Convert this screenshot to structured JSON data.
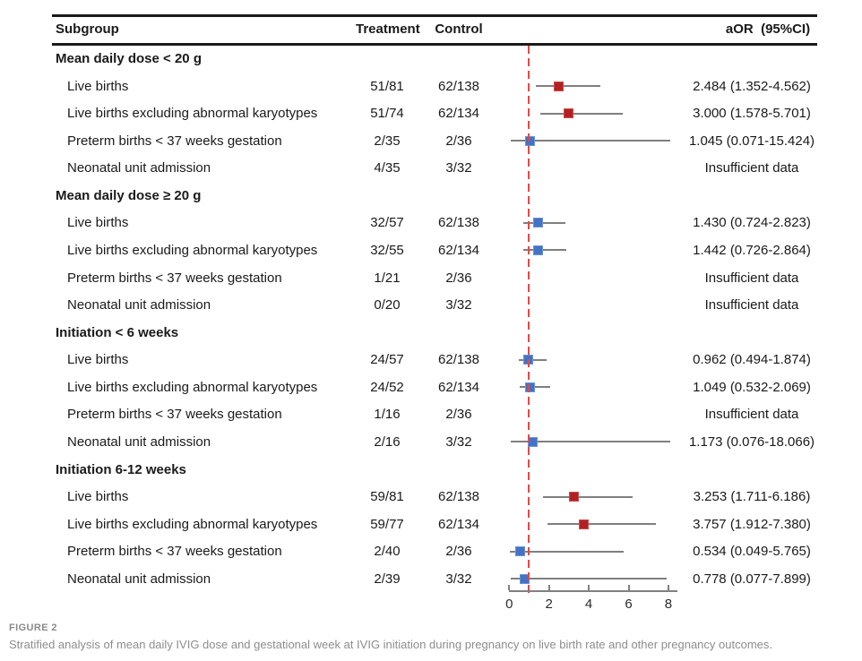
{
  "header": {
    "subgroup": "Subgroup",
    "treatment": "Treatment",
    "control": "Control",
    "aor": "aOR  (95%CI)"
  },
  "caption": {
    "label": "FIGURE 2",
    "text": "Stratified analysis of mean daily IVIG dose and gestational week at IVIG initiation during pregnancy on live birth rate and other pregnancy outcomes."
  },
  "colors": {
    "significant_marker": "#b22026",
    "nonsignificant_marker": "#4472c4",
    "ci_line": "#7f7f7f",
    "reference_line": "#e04a45",
    "table_rule": "#1a1a1a",
    "caption_text": "#8d8d8d"
  },
  "chart_data": {
    "type": "forest",
    "axis": {
      "min": 0,
      "max": 8,
      "ticks": [
        0,
        2,
        4,
        6,
        8
      ],
      "reference_value": 1,
      "clip_max": 8.1
    },
    "groups": [
      {
        "label": "Mean daily dose < 20 g",
        "rows": [
          {
            "label": "Live births",
            "treatment": "51/81",
            "control": "62/138",
            "aor": "2.484 (1.352-4.562)",
            "est": 2.484,
            "lo": 1.352,
            "hi": 4.562,
            "significant": true
          },
          {
            "label": "Live births excluding abnormal karyotypes",
            "treatment": "51/74",
            "control": "62/134",
            "aor": "3.000 (1.578-5.701)",
            "est": 3.0,
            "lo": 1.578,
            "hi": 5.701,
            "significant": true
          },
          {
            "label": "Preterm births < 37 weeks gestation",
            "treatment": "2/35",
            "control": "2/36",
            "aor": "1.045 (0.071-15.424)",
            "est": 1.045,
            "lo": 0.071,
            "hi": 15.424,
            "significant": false
          },
          {
            "label": "Neonatal unit admission",
            "treatment": "4/35",
            "control": "3/32",
            "aor": "Insufficient data",
            "est": null,
            "lo": null,
            "hi": null,
            "significant": false
          }
        ]
      },
      {
        "label": "Mean daily dose ≥ 20 g",
        "rows": [
          {
            "label": "Live births",
            "treatment": "32/57",
            "control": "62/138",
            "aor": "1.430 (0.724-2.823)",
            "est": 1.43,
            "lo": 0.724,
            "hi": 2.823,
            "significant": false
          },
          {
            "label": "Live births excluding abnormal karyotypes",
            "treatment": "32/55",
            "control": "62/134",
            "aor": "1.442 (0.726-2.864)",
            "est": 1.442,
            "lo": 0.726,
            "hi": 2.864,
            "significant": false
          },
          {
            "label": "Preterm births < 37 weeks gestation",
            "treatment": "1/21",
            "control": "2/36",
            "aor": "Insufficient data",
            "est": null,
            "lo": null,
            "hi": null,
            "significant": false
          },
          {
            "label": "Neonatal unit admission",
            "treatment": "0/20",
            "control": "3/32",
            "aor": "Insufficient data",
            "est": null,
            "lo": null,
            "hi": null,
            "significant": false
          }
        ]
      },
      {
        "label": "Initiation < 6 weeks",
        "rows": [
          {
            "label": "Live births",
            "treatment": "24/57",
            "control": "62/138",
            "aor": "0.962 (0.494-1.874)",
            "est": 0.962,
            "lo": 0.494,
            "hi": 1.874,
            "significant": false
          },
          {
            "label": "Live births excluding abnormal karyotypes",
            "treatment": "24/52",
            "control": "62/134",
            "aor": "1.049 (0.532-2.069)",
            "est": 1.049,
            "lo": 0.532,
            "hi": 2.069,
            "significant": false
          },
          {
            "label": "Preterm births < 37 weeks gestation",
            "treatment": "1/16",
            "control": "2/36",
            "aor": "Insufficient data",
            "est": null,
            "lo": null,
            "hi": null,
            "significant": false
          },
          {
            "label": "Neonatal unit admission",
            "treatment": "2/16",
            "control": "3/32",
            "aor": "1.173 (0.076-18.066)",
            "est": 1.173,
            "lo": 0.076,
            "hi": 18.066,
            "significant": false
          }
        ]
      },
      {
        "label": "Initiation 6-12 weeks",
        "rows": [
          {
            "label": "Live births",
            "treatment": "59/81",
            "control": "62/138",
            "aor": "3.253 (1.711-6.186)",
            "est": 3.253,
            "lo": 1.711,
            "hi": 6.186,
            "significant": true
          },
          {
            "label": "Live births excluding abnormal karyotypes",
            "treatment": "59/77",
            "control": "62/134",
            "aor": "3.757 (1.912-7.380)",
            "est": 3.757,
            "lo": 1.912,
            "hi": 7.38,
            "significant": true
          },
          {
            "label": "Preterm births < 37 weeks gestation",
            "treatment": "2/40",
            "control": "2/36",
            "aor": "0.534 (0.049-5.765)",
            "est": 0.534,
            "lo": 0.049,
            "hi": 5.765,
            "significant": false
          },
          {
            "label": "Neonatal unit admission",
            "treatment": "2/39",
            "control": "3/32",
            "aor": "0.778 (0.077-7.899)",
            "est": 0.778,
            "lo": 0.077,
            "hi": 7.899,
            "significant": false
          }
        ]
      }
    ]
  }
}
